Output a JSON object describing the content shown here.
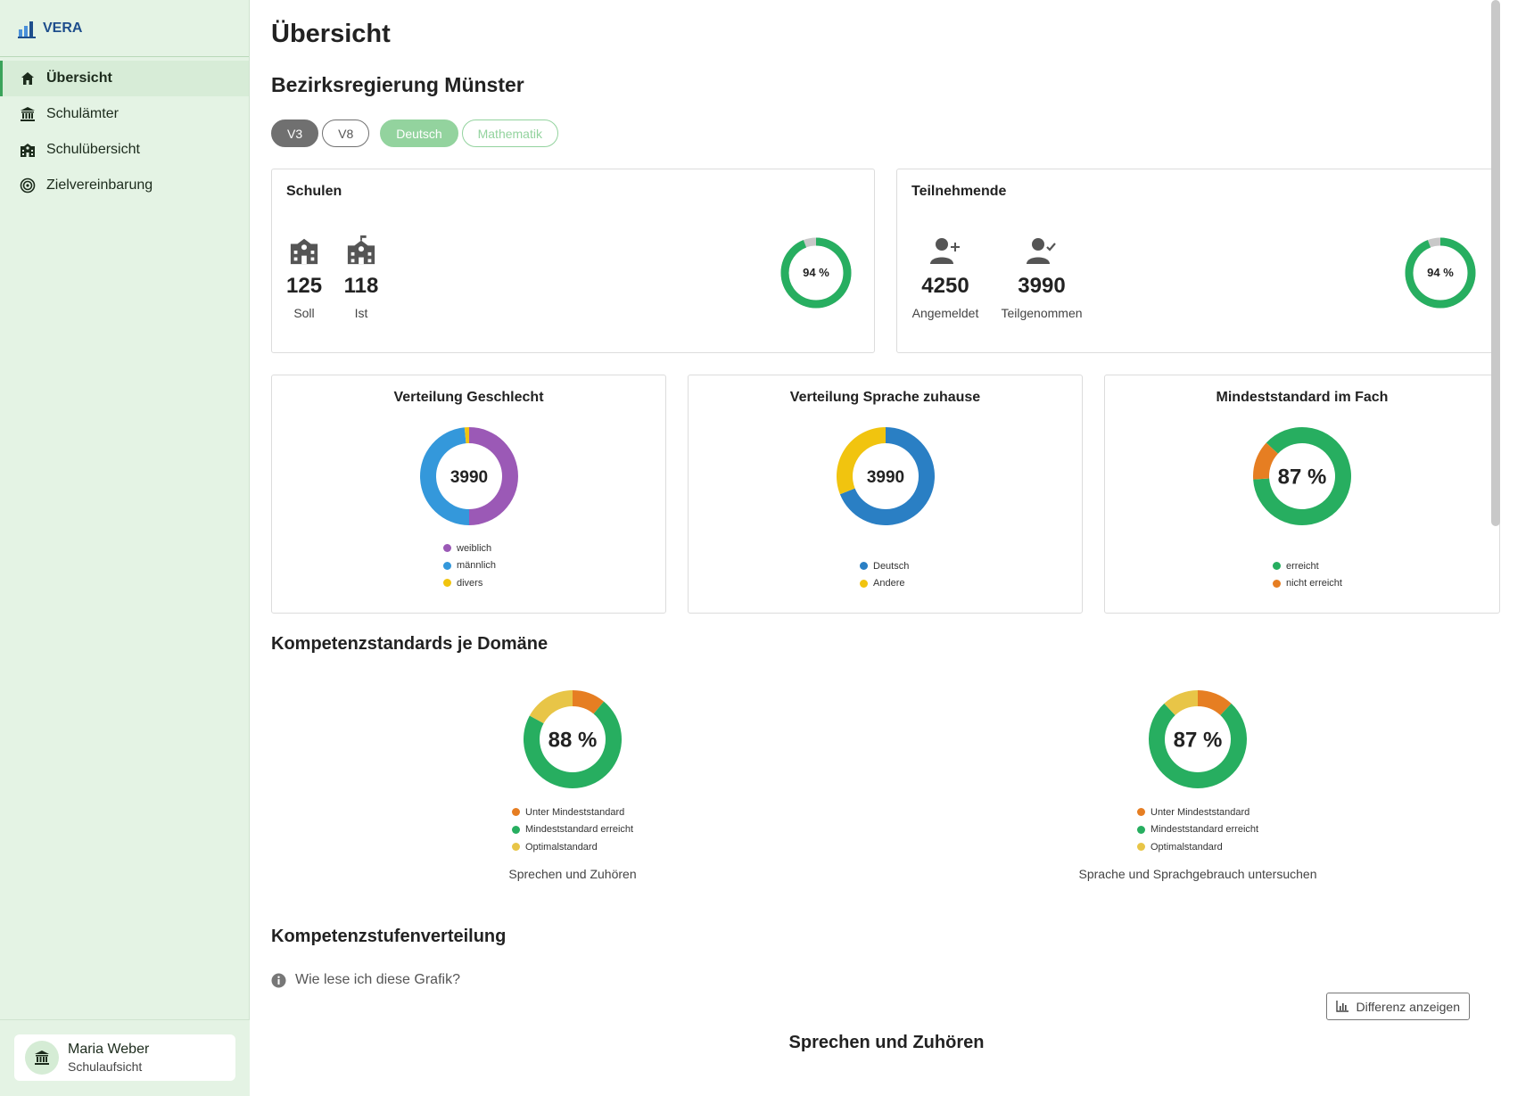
{
  "app": {
    "name": "VERA"
  },
  "sidebar": {
    "items": [
      {
        "label": "Übersicht",
        "icon": "home-icon",
        "active": true
      },
      {
        "label": "Schulämter",
        "icon": "bank-icon",
        "active": false
      },
      {
        "label": "Schulübersicht",
        "icon": "school-icon",
        "active": false
      },
      {
        "label": "Zielvereinbarung",
        "icon": "target-icon",
        "active": false
      }
    ],
    "user": {
      "name": "Maria Weber",
      "role": "Schulaufsicht"
    }
  },
  "page": {
    "title": "Übersicht",
    "region": "Bezirksregierung Münster",
    "filters": {
      "grades": [
        "V3",
        "V8"
      ],
      "selected_grade": "V3",
      "subjects": [
        "Deutsch",
        "Mathematik"
      ],
      "selected_subject": "Deutsch"
    }
  },
  "schulen": {
    "title": "Schulen",
    "soll": {
      "value": "125",
      "label": "Soll"
    },
    "ist": {
      "value": "118",
      "label": "Ist"
    },
    "percent_label": "94 %",
    "fraction": 0.94
  },
  "teilnehmende": {
    "title": "Teilnehmende",
    "angemeldet": {
      "value": "4250",
      "label": "Angemeldet"
    },
    "teilgenommen": {
      "value": "3990",
      "label": "Teilgenommen"
    },
    "percent_label": "94 %",
    "fraction": 0.94
  },
  "colors": {
    "green": "#27ae60",
    "grey": "#c8c8c8",
    "purple": "#9b59b6",
    "blue": "#3498db",
    "yellow": "#f1c40f",
    "dark_blue": "#2a7fc4",
    "orange": "#e67e22",
    "light_yellow": "#e8c547"
  },
  "chart_data": [
    {
      "type": "pie",
      "title": "Verteilung Geschlecht",
      "center_label": "3990",
      "categories": [
        "weiblich",
        "männlich",
        "divers"
      ],
      "values": [
        50,
        48.5,
        1.5
      ]
    },
    {
      "type": "pie",
      "title": "Verteilung Sprache zuhause",
      "center_label": "3990",
      "categories": [
        "Deutsch",
        "Andere"
      ],
      "values": [
        69,
        31
      ]
    },
    {
      "type": "pie",
      "title": "Mindeststandard im Fach",
      "center_label": "87 %",
      "categories": [
        "erreicht",
        "nicht erreicht"
      ],
      "values": [
        87,
        13
      ]
    },
    {
      "type": "pie",
      "title": "",
      "center_label": "88 %",
      "categories": [
        "Unter Mindeststandard",
        "Mindeststandard erreicht",
        "Optimalstandard"
      ],
      "values": [
        11,
        72,
        17
      ],
      "caption": "Sprechen und Zuhören"
    },
    {
      "type": "pie",
      "title": "",
      "center_label": "87 %",
      "categories": [
        "Unter Mindeststandard",
        "Mindeststandard erreicht",
        "Optimalstandard"
      ],
      "values": [
        12,
        76,
        12
      ],
      "caption": "Sprache und Sprachgebrauch untersuchen"
    }
  ],
  "sections": {
    "kompetenzstandards": "Kompetenzstandards je Domäne",
    "kompetenzstufen": "Kompetenzstufenverteilung",
    "help_text": "Wie lese ich diese Grafik?",
    "diff_button": "Differenz anzeigen",
    "bottom_chart_title": "Sprechen und Zuhören"
  }
}
